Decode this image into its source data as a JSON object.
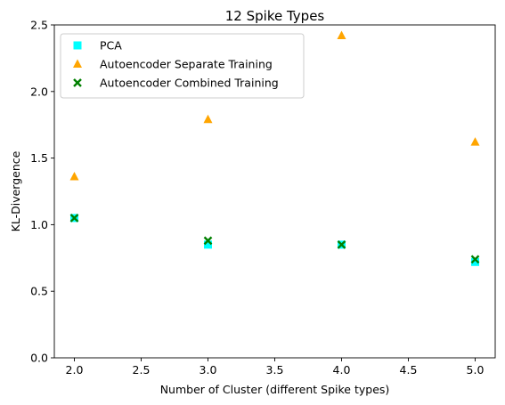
{
  "chart_data": {
    "type": "scatter",
    "title": "12 Spike Types",
    "xlabel": "Number of Cluster (different Spike types)",
    "ylabel": "KL-Divergence",
    "xlim": [
      1.85,
      5.15
    ],
    "ylim": [
      0.0,
      2.5
    ],
    "xticks": [
      2.0,
      2.5,
      3.0,
      3.5,
      4.0,
      4.5,
      5.0
    ],
    "xtick_labels": [
      "2.0",
      "2.5",
      "3.0",
      "3.5",
      "4.0",
      "4.5",
      "5.0"
    ],
    "yticks": [
      0.0,
      0.5,
      1.0,
      1.5,
      2.0,
      2.5
    ],
    "ytick_labels": [
      "0.0",
      "0.5",
      "1.0",
      "1.5",
      "2.0",
      "2.5"
    ],
    "grid": false,
    "legend_position": "upper-left",
    "series": [
      {
        "name": "PCA",
        "marker": "square",
        "color": "#00ffff",
        "x": [
          2,
          3,
          4,
          5
        ],
        "y": [
          1.05,
          0.85,
          0.85,
          0.72
        ]
      },
      {
        "name": "Autoencoder Separate Training",
        "marker": "triangle",
        "color": "#ffa500",
        "x": [
          2,
          3,
          4,
          5
        ],
        "y": [
          1.36,
          1.79,
          2.42,
          1.62
        ]
      },
      {
        "name": "Autoencoder Combined Training",
        "marker": "x",
        "color": "#008000",
        "x": [
          2,
          3,
          4,
          5
        ],
        "y": [
          1.05,
          0.88,
          0.85,
          0.74
        ]
      }
    ]
  }
}
